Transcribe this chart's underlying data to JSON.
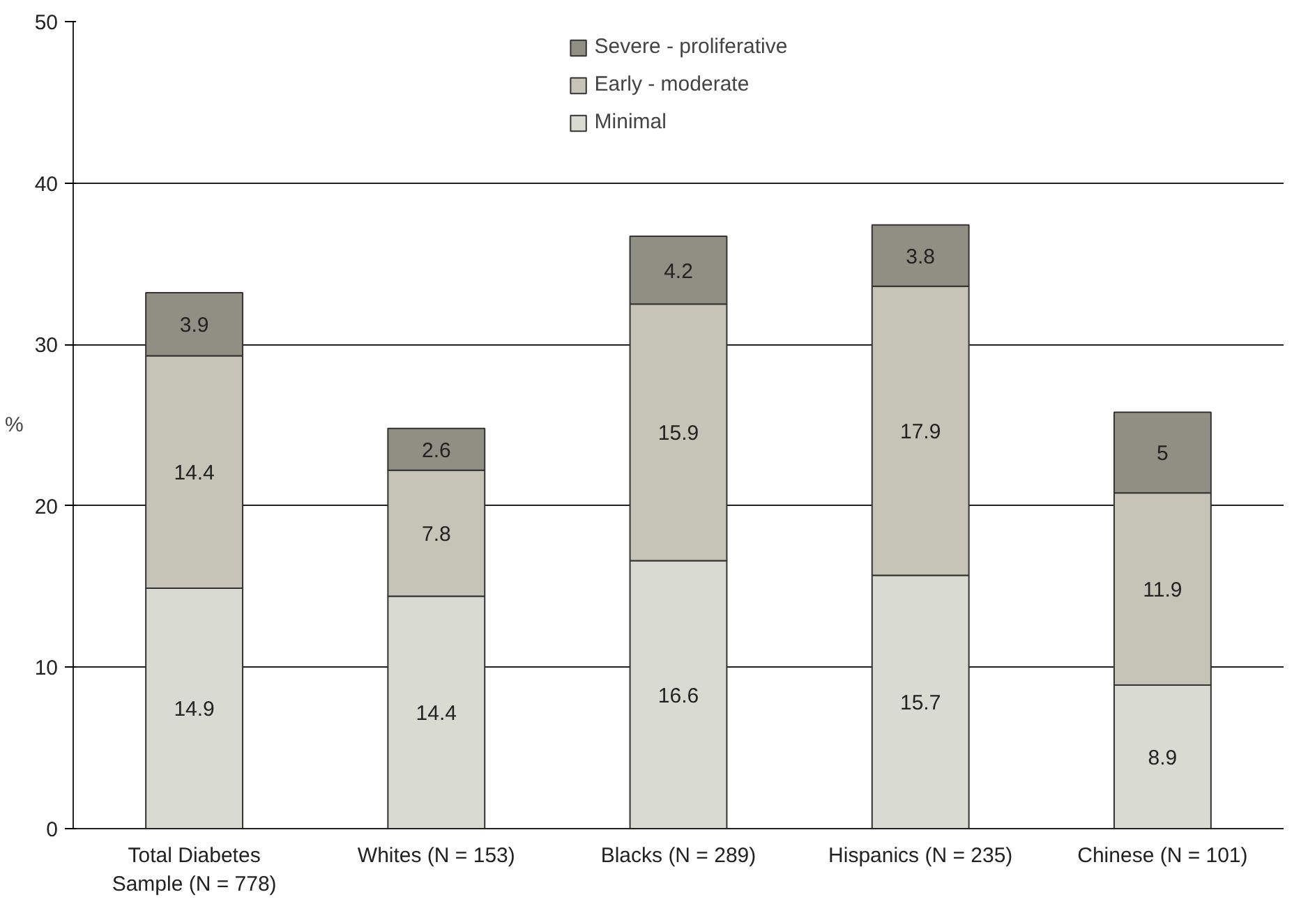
{
  "chart_data": {
    "type": "bar",
    "stacked": true,
    "ylabel": "%",
    "categories": [
      "Total Diabetes\nSample (N = 778)",
      "Whites (N = 153)",
      "Blacks (N = 289)",
      "Hispanics (N = 235)",
      "Chinese (N = 101)"
    ],
    "series": [
      {
        "name": "Minimal",
        "color": "#d9dad2",
        "values": [
          14.9,
          14.4,
          16.6,
          15.7,
          8.9
        ]
      },
      {
        "name": "Early - moderate",
        "color": "#c6c4b6",
        "values": [
          14.4,
          7.8,
          15.9,
          17.9,
          11.9
        ]
      },
      {
        "name": "Severe - proliferative",
        "color": "#8f8f83",
        "values": [
          3.9,
          2.6,
          4.2,
          3.8,
          5
        ]
      }
    ],
    "ylim": [
      0,
      50
    ],
    "yticks": [
      0,
      10,
      20,
      30,
      40,
      50
    ],
    "grid": "y",
    "legend": "top",
    "data_labels": true
  }
}
